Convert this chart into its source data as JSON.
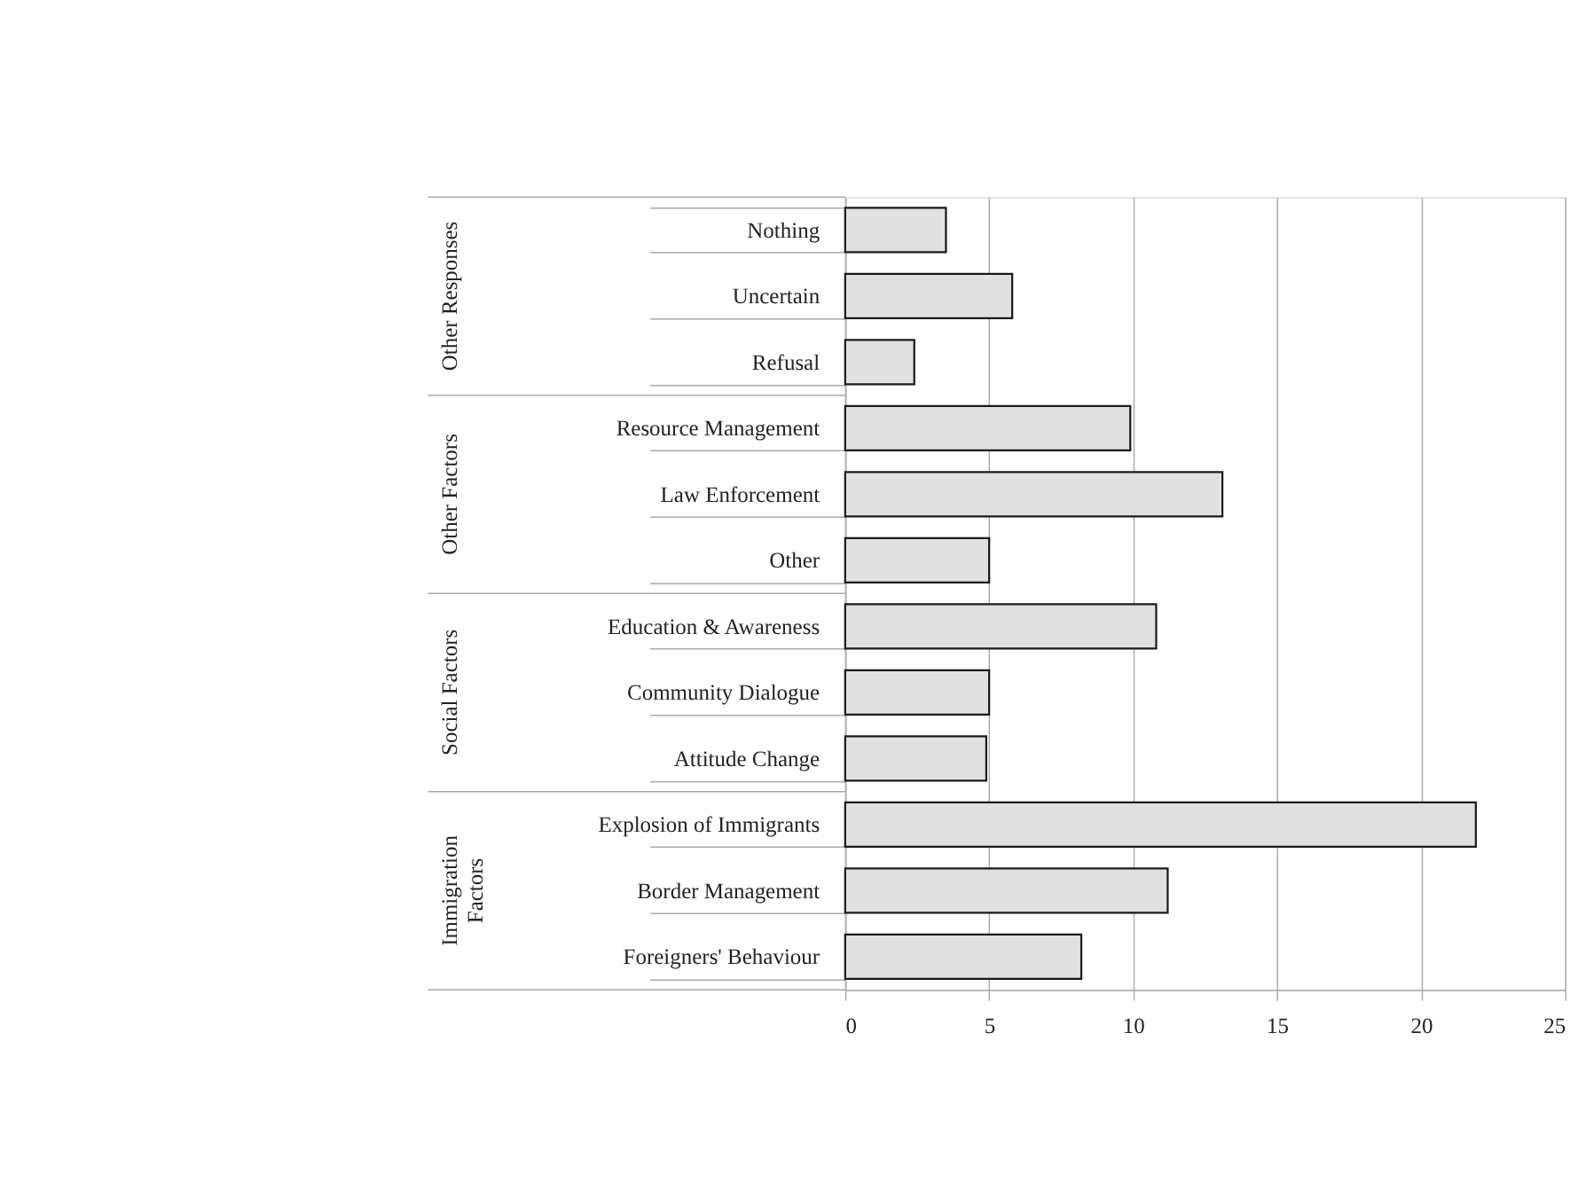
{
  "chart_data": {
    "type": "bar",
    "orientation": "horizontal",
    "categories": [
      "Nothing",
      "Uncertain",
      "Refusal",
      "Resource Management",
      "Law Enforcement",
      "Other",
      "Education & Awareness",
      "Community Dialogue",
      "Attitude Change",
      "Explosion of Immigrants",
      "Border Management",
      "Foreigners' Behaviour"
    ],
    "values": [
      3.5,
      5.8,
      2.4,
      9.9,
      13.1,
      5.0,
      10.8,
      5.0,
      4.9,
      21.9,
      11.2,
      8.2
    ],
    "color": "#e0e0e0",
    "xlim": [
      0,
      25
    ],
    "xticks": [
      0,
      5,
      10,
      15,
      20,
      25
    ],
    "grid": "x",
    "annotations": [
      "Other Responses",
      "Other Factors",
      "Social Factors",
      "Immigration Factors"
    ]
  }
}
